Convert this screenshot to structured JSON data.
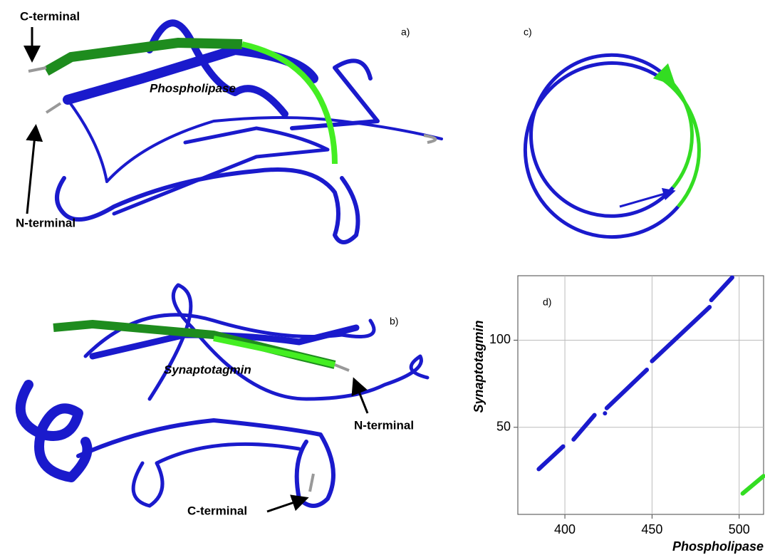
{
  "panels": {
    "a": {
      "label": "a)",
      "protein": "Phospholipase",
      "c_terminal": "C-terminal",
      "n_terminal": "N-terminal"
    },
    "b": {
      "label": "b)",
      "protein": "Synaptotagmin",
      "n_terminal": "N-terminal",
      "c_terminal": "C-terminal"
    },
    "c": {
      "label": "c)"
    }
  },
  "chart_data": {
    "type": "line",
    "label": "d)",
    "x_label": "Phospholipase",
    "y_label": "Synaptotagmin",
    "xlim": [
      373,
      514
    ],
    "ylim": [
      0,
      137
    ],
    "xticks": [
      400,
      450,
      500
    ],
    "yticks": [
      50,
      100
    ],
    "grid": true,
    "series": [
      {
        "color": "#1a1acc",
        "x": [
          385,
          399,
          401,
          405,
          417,
          420,
          423,
          423.5,
          424,
          447,
          448,
          450,
          483,
          483.5,
          484,
          496
        ],
        "values": [
          26,
          39,
          null,
          43,
          57,
          null,
          58,
          null,
          61,
          83,
          null,
          88,
          119,
          null,
          123,
          136
        ]
      },
      {
        "color": "#33dd22",
        "x": [
          502,
          514
        ],
        "values": [
          12,
          22
        ]
      }
    ]
  }
}
